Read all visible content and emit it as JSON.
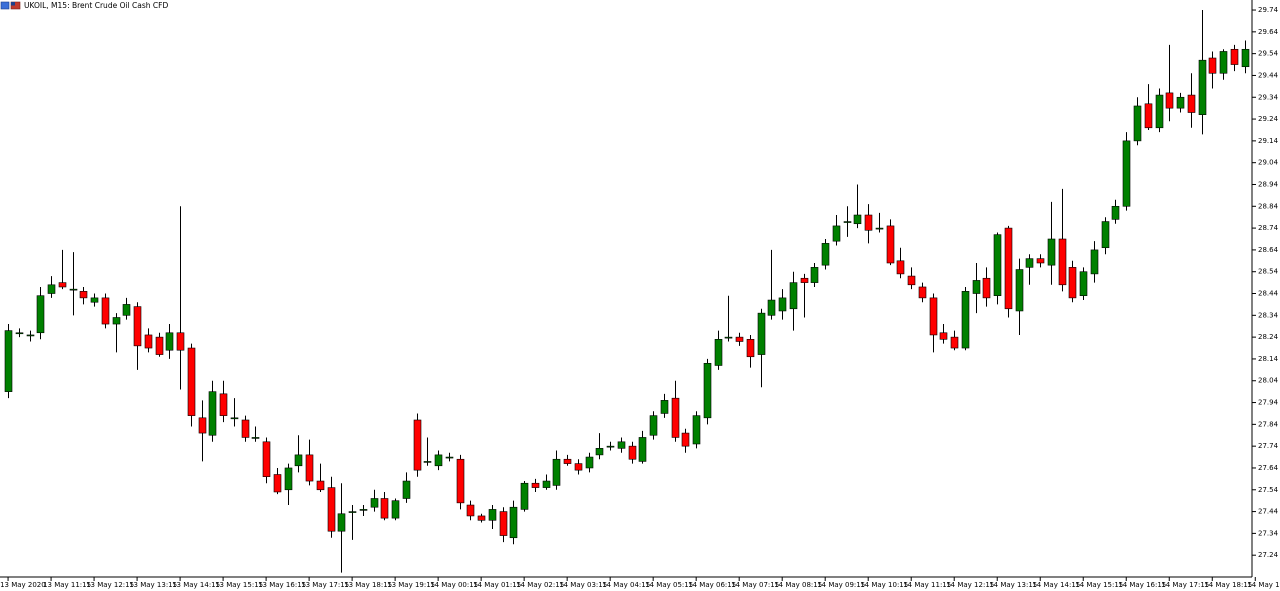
{
  "chart_data": {
    "type": "candlestick",
    "title": "UKOIL, M15:  Brent Crude Oil Cash CFD",
    "up_color": "#008000",
    "down_color": "#ff0000",
    "wick_color": "#000000",
    "xlim": [
      -0.75,
      118.3
    ],
    "ylim": [
      27.14,
      29.786
    ],
    "yticks": [
      29.74,
      29.64,
      29.54,
      29.44,
      29.34,
      29.24,
      29.14,
      29.04,
      28.94,
      28.84,
      28.74,
      28.64,
      28.54,
      28.44,
      28.34,
      28.24,
      28.14,
      28.04,
      27.94,
      27.84,
      27.74,
      27.64,
      27.54,
      27.44,
      27.34,
      27.24
    ],
    "xticks": [
      {
        "value": 0,
        "label": "13 May 2020"
      },
      {
        "value": 4,
        "label": "13 May 11:15"
      },
      {
        "value": 8,
        "label": "13 May 12:15"
      },
      {
        "value": 12,
        "label": "13 May 13:15"
      },
      {
        "value": 16,
        "label": "13 May 14:15"
      },
      {
        "value": 20,
        "label": "13 May 15:15"
      },
      {
        "value": 24,
        "label": "13 May 16:15"
      },
      {
        "value": 28,
        "label": "13 May 17:15"
      },
      {
        "value": 32,
        "label": "13 May 18:15"
      },
      {
        "value": 36,
        "label": "13 May 19:15"
      },
      {
        "value": 40,
        "label": "14 May 00:15"
      },
      {
        "value": 44,
        "label": "14 May 01:15"
      },
      {
        "value": 48,
        "label": "14 May 02:15"
      },
      {
        "value": 52,
        "label": "14 May 03:15"
      },
      {
        "value": 56,
        "label": "14 May 04:15"
      },
      {
        "value": 60,
        "label": "14 May 05:15"
      },
      {
        "value": 64,
        "label": "14 May 06:15"
      },
      {
        "value": 68,
        "label": "14 May 07:15"
      },
      {
        "value": 72,
        "label": "14 May 08:15"
      },
      {
        "value": 76,
        "label": "14 May 09:15"
      },
      {
        "value": 80,
        "label": "14 May 10:15"
      },
      {
        "value": 84,
        "label": "14 May 11:15"
      },
      {
        "value": 88,
        "label": "14 May 12:15"
      },
      {
        "value": 92,
        "label": "14 May 13:15"
      },
      {
        "value": 96,
        "label": "14 May 14:15"
      },
      {
        "value": 100,
        "label": "14 May 15:15"
      },
      {
        "value": 104,
        "label": "14 May 16:15"
      },
      {
        "value": 108,
        "label": "14 May 17:15"
      },
      {
        "value": 112,
        "label": "14 May 18:15"
      },
      {
        "value": 116,
        "label": "14 May 19:1"
      }
    ],
    "candles": [
      [
        27.99,
        28.3,
        27.96,
        28.27
      ],
      [
        28.26,
        28.28,
        28.24,
        28.26
      ],
      [
        28.25,
        28.27,
        28.22,
        28.25
      ],
      [
        28.26,
        28.47,
        28.23,
        28.43
      ],
      [
        28.44,
        28.52,
        28.42,
        28.48
      ],
      [
        28.49,
        28.64,
        28.46,
        28.47
      ],
      [
        28.46,
        28.63,
        28.34,
        28.46
      ],
      [
        28.45,
        28.47,
        28.39,
        28.42
      ],
      [
        28.4,
        28.44,
        28.38,
        28.42
      ],
      [
        28.42,
        28.44,
        28.28,
        28.3
      ],
      [
        28.3,
        28.35,
        28.17,
        28.33
      ],
      [
        28.34,
        28.42,
        28.32,
        28.39
      ],
      [
        28.38,
        28.4,
        28.09,
        28.2
      ],
      [
        28.25,
        28.28,
        28.17,
        28.19
      ],
      [
        28.24,
        28.26,
        28.15,
        28.16
      ],
      [
        28.18,
        28.3,
        28.14,
        28.26
      ],
      [
        28.26,
        28.84,
        28.0,
        28.18
      ],
      [
        28.19,
        28.21,
        27.83,
        27.88
      ],
      [
        27.87,
        27.95,
        27.67,
        27.8
      ],
      [
        27.79,
        28.04,
        27.76,
        27.99
      ],
      [
        27.98,
        28.04,
        27.85,
        27.88
      ],
      [
        27.87,
        27.96,
        27.83,
        27.87
      ],
      [
        27.86,
        27.88,
        27.76,
        27.78
      ],
      [
        27.78,
        27.83,
        27.76,
        27.78
      ],
      [
        27.76,
        27.78,
        27.57,
        27.6
      ],
      [
        27.61,
        27.64,
        27.52,
        27.53
      ],
      [
        27.54,
        27.66,
        27.47,
        27.64
      ],
      [
        27.65,
        27.79,
        27.62,
        27.7
      ],
      [
        27.7,
        27.77,
        27.56,
        27.58
      ],
      [
        27.58,
        27.66,
        27.53,
        27.54
      ],
      [
        27.55,
        27.6,
        27.32,
        27.35
      ],
      [
        27.35,
        27.57,
        27.16,
        27.43
      ],
      [
        27.44,
        27.47,
        27.31,
        27.44
      ],
      [
        27.45,
        27.47,
        27.42,
        27.45
      ],
      [
        27.46,
        27.54,
        27.44,
        27.5
      ],
      [
        27.5,
        27.53,
        27.4,
        27.41
      ],
      [
        27.41,
        27.5,
        27.4,
        27.49
      ],
      [
        27.5,
        27.62,
        27.48,
        27.58
      ],
      [
        27.86,
        27.89,
        27.6,
        27.63
      ],
      [
        27.67,
        27.78,
        27.65,
        27.67
      ],
      [
        27.65,
        27.72,
        27.63,
        27.7
      ],
      [
        27.69,
        27.71,
        27.67,
        27.69
      ],
      [
        27.68,
        27.7,
        27.45,
        27.48
      ],
      [
        27.47,
        27.49,
        27.4,
        27.42
      ],
      [
        27.42,
        27.43,
        27.39,
        27.4
      ],
      [
        27.4,
        27.47,
        27.36,
        27.45
      ],
      [
        27.44,
        27.46,
        27.3,
        27.33
      ],
      [
        27.32,
        27.49,
        27.29,
        27.46
      ],
      [
        27.45,
        27.58,
        27.44,
        27.57
      ],
      [
        27.57,
        27.59,
        27.53,
        27.55
      ],
      [
        27.55,
        27.61,
        27.54,
        27.58
      ],
      [
        27.56,
        27.72,
        27.54,
        27.68
      ],
      [
        27.68,
        27.7,
        27.65,
        27.66
      ],
      [
        27.66,
        27.68,
        27.61,
        27.63
      ],
      [
        27.64,
        27.71,
        27.62,
        27.69
      ],
      [
        27.7,
        27.8,
        27.68,
        27.73
      ],
      [
        27.74,
        27.76,
        27.72,
        27.74
      ],
      [
        27.73,
        27.78,
        27.71,
        27.76
      ],
      [
        27.74,
        27.76,
        27.66,
        27.68
      ],
      [
        27.67,
        27.81,
        27.66,
        27.78
      ],
      [
        27.79,
        27.9,
        27.77,
        27.88
      ],
      [
        27.89,
        27.98,
        27.87,
        27.95
      ],
      [
        27.96,
        28.04,
        27.76,
        27.78
      ],
      [
        27.8,
        27.82,
        27.71,
        27.74
      ],
      [
        27.75,
        27.9,
        27.73,
        27.88
      ],
      [
        27.87,
        28.14,
        27.84,
        28.12
      ],
      [
        28.11,
        28.27,
        28.09,
        28.23
      ],
      [
        28.24,
        28.43,
        28.22,
        28.24
      ],
      [
        28.24,
        28.26,
        28.2,
        28.22
      ],
      [
        28.23,
        28.25,
        28.1,
        28.15
      ],
      [
        28.16,
        28.37,
        28.01,
        28.35
      ],
      [
        28.34,
        28.64,
        28.32,
        28.41
      ],
      [
        28.36,
        28.46,
        28.32,
        28.42
      ],
      [
        28.37,
        28.54,
        28.27,
        28.49
      ],
      [
        28.51,
        28.53,
        28.33,
        28.49
      ],
      [
        28.49,
        28.58,
        28.47,
        28.56
      ],
      [
        28.57,
        28.69,
        28.55,
        28.67
      ],
      [
        28.68,
        28.8,
        28.66,
        28.75
      ],
      [
        28.77,
        28.84,
        28.7,
        28.77
      ],
      [
        28.76,
        28.94,
        28.74,
        28.8
      ],
      [
        28.8,
        28.85,
        28.67,
        28.73
      ],
      [
        28.74,
        28.81,
        28.72,
        28.74
      ],
      [
        28.75,
        28.78,
        28.57,
        28.58
      ],
      [
        28.59,
        28.65,
        28.51,
        28.53
      ],
      [
        28.52,
        28.56,
        28.46,
        28.48
      ],
      [
        28.47,
        28.49,
        28.4,
        28.42
      ],
      [
        28.42,
        28.44,
        28.17,
        28.25
      ],
      [
        28.26,
        28.3,
        28.21,
        28.23
      ],
      [
        28.24,
        28.27,
        28.18,
        28.19
      ],
      [
        28.19,
        28.47,
        28.18,
        28.45
      ],
      [
        28.44,
        28.58,
        28.35,
        28.5
      ],
      [
        28.51,
        28.56,
        28.38,
        28.42
      ],
      [
        28.43,
        28.72,
        28.39,
        28.71
      ],
      [
        28.74,
        28.75,
        28.33,
        28.37
      ],
      [
        28.36,
        28.6,
        28.25,
        28.55
      ],
      [
        28.56,
        28.62,
        28.48,
        28.6
      ],
      [
        28.6,
        28.62,
        28.56,
        28.58
      ],
      [
        28.57,
        28.86,
        28.48,
        28.69
      ],
      [
        28.69,
        28.92,
        28.45,
        28.48
      ],
      [
        28.56,
        28.59,
        28.4,
        28.42
      ],
      [
        28.43,
        28.56,
        28.41,
        28.54
      ],
      [
        28.53,
        28.68,
        28.49,
        28.64
      ],
      [
        28.65,
        28.79,
        28.62,
        28.77
      ],
      [
        28.78,
        28.87,
        28.76,
        28.84
      ],
      [
        28.84,
        29.18,
        28.82,
        29.14
      ],
      [
        29.14,
        29.34,
        29.12,
        29.3
      ],
      [
        29.31,
        29.4,
        29.19,
        29.2
      ],
      [
        29.2,
        29.38,
        29.18,
        29.35
      ],
      [
        29.36,
        29.58,
        29.23,
        29.29
      ],
      [
        29.29,
        29.36,
        29.27,
        29.34
      ],
      [
        29.35,
        29.45,
        29.2,
        29.27
      ],
      [
        29.26,
        29.74,
        29.17,
        29.51
      ],
      [
        29.52,
        29.55,
        29.38,
        29.45
      ],
      [
        29.45,
        29.56,
        29.42,
        29.55
      ],
      [
        29.56,
        29.58,
        29.46,
        29.49
      ],
      [
        29.48,
        29.6,
        29.45,
        29.56
      ]
    ]
  }
}
